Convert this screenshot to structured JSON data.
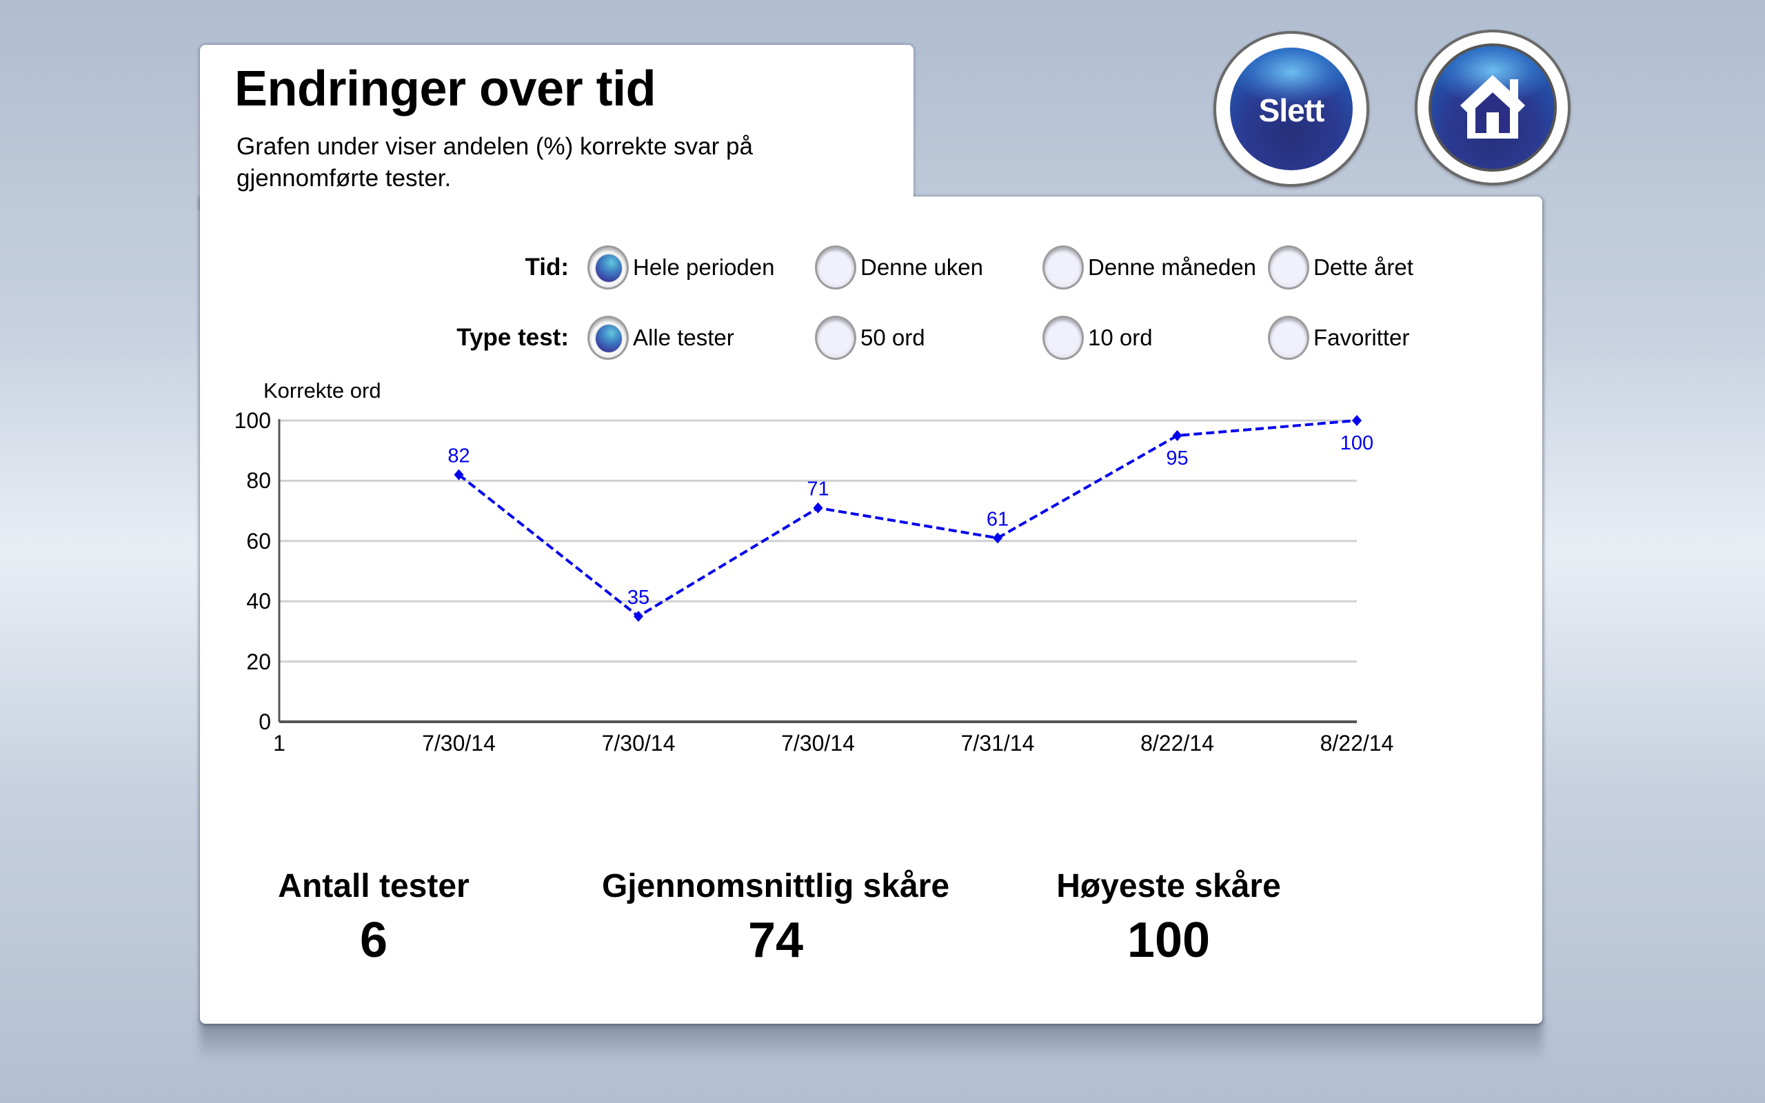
{
  "header": {
    "title": "Endringer over tid",
    "subtitle": "Grafen under viser andelen (%) korrekte svar på gjennomførte tester."
  },
  "buttons": {
    "delete_label": "Slett",
    "home_icon": "home-icon"
  },
  "filters": {
    "time": {
      "label": "Tid:",
      "options": [
        {
          "label": "Hele perioden",
          "checked": true
        },
        {
          "label": "Denne uken",
          "checked": false
        },
        {
          "label": "Denne måneden",
          "checked": false
        },
        {
          "label": "Dette året",
          "checked": false
        }
      ]
    },
    "test_type": {
      "label": "Type test:",
      "options": [
        {
          "label": "Alle tester",
          "checked": true
        },
        {
          "label": "50 ord",
          "checked": false
        },
        {
          "label": "10 ord",
          "checked": false
        },
        {
          "label": "Favoritter",
          "checked": false
        }
      ]
    }
  },
  "chart_data": {
    "type": "line",
    "title": "",
    "ylabel": "Korrekte ord",
    "xlabel": "",
    "ylim": [
      0,
      100
    ],
    "yticks": [
      "0",
      "20",
      "40",
      "60",
      "80",
      "100"
    ],
    "categories": [
      "1",
      "7/30/14",
      "7/30/14",
      "7/30/14",
      "7/31/14",
      "8/22/14",
      "8/22/14"
    ],
    "series": [
      {
        "name": "Korrekte ord",
        "x": [
          "7/30/14",
          "7/30/14",
          "7/30/14",
          "7/31/14",
          "8/22/14",
          "8/22/14"
        ],
        "values": [
          82,
          35,
          71,
          61,
          95,
          100
        ],
        "data_labels": [
          "82",
          "35",
          "71",
          "61",
          "95",
          "100"
        ],
        "color": "#0000ee",
        "line_style": "dashed",
        "marker": "diamond"
      }
    ],
    "grid": true,
    "legend": "none"
  },
  "stats": [
    {
      "label": "Antall tester",
      "value": "6"
    },
    {
      "label": "Gjennomsnittlig skåre",
      "value": "74"
    },
    {
      "label": "Høyeste skåre",
      "value": "100"
    }
  ],
  "colors": {
    "accent": "#2b3a92",
    "series": "#0000ee",
    "grid": "#d0d0d0"
  }
}
